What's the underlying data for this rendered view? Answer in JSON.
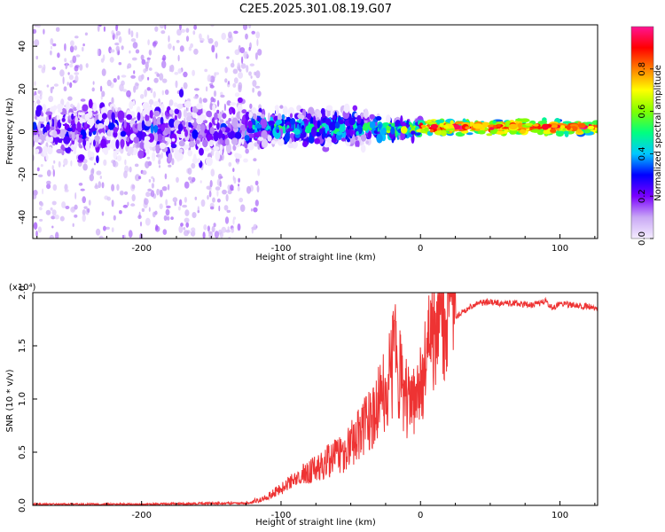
{
  "title": "C2E5.2025.301.08.19.G07",
  "chart_data": [
    {
      "type": "heatmap",
      "name": "spectrogram",
      "xlabel": "Height of straight line (km)",
      "ylabel": "Frequency (Hz)",
      "xlim": [
        -278,
        127
      ],
      "ylim": [
        -50,
        50
      ],
      "xticks": [
        -200,
        -100,
        0,
        100
      ],
      "yticks": [
        -40,
        -20,
        0,
        20,
        40
      ],
      "colorbar": {
        "label": "Normalized spectral amplitude",
        "range": [
          0,
          1
        ],
        "ticks": [
          0.0,
          0.2,
          0.4,
          0.6,
          0.8
        ],
        "tick_labels": [
          "0.0",
          "0.2",
          "0.4",
          "0.6",
          "0.8"
        ],
        "colormap": [
          "#f4ecff",
          "#c9a8f5",
          "#7a00ff",
          "#0000ff",
          "#00c8ff",
          "#00ff7f",
          "#7fff00",
          "#ffff00",
          "#ff8000",
          "#ff0000",
          "#ff1493"
        ]
      },
      "ridge": {
        "description": "dominant frequency band around 0 Hz",
        "segments": [
          {
            "x_from": -278,
            "x_to": -125,
            "center_hz": 1,
            "spread_hz": 6,
            "level": 0.2,
            "scatter": "wide noise from -50 to 50 Hz"
          },
          {
            "x_from": -125,
            "x_to": -30,
            "center_hz": 2,
            "spread_hz": 4,
            "level": 0.4
          },
          {
            "x_from": -30,
            "x_to": 0,
            "center_hz": 1,
            "spread_hz": 2,
            "level": 0.55
          },
          {
            "x_from": 0,
            "x_to": 127,
            "center_hz": 2,
            "spread_hz": 1.5,
            "level": 0.85
          }
        ]
      }
    },
    {
      "type": "line",
      "name": "snr",
      "xlabel": "Height of straight line (km)",
      "ylabel": "SNR (10 * v/v)",
      "y_multiplier": "(x10⁴)",
      "xlim": [
        -278,
        127
      ],
      "ylim": [
        0,
        2
      ],
      "xticks": [
        -200,
        -100,
        0,
        100
      ],
      "yticks": [
        0.0,
        0.5,
        1.0,
        1.5,
        2.0
      ],
      "ytick_labels": [
        "0.0",
        "0.5",
        "1.0",
        "1.5",
        "2.0"
      ],
      "color": "#ee3333",
      "series": [
        {
          "name": "SNR",
          "x": [
            -278,
            -250,
            -200,
            -150,
            -125,
            -115,
            -105,
            -95,
            -85,
            -75,
            -65,
            -55,
            -45,
            -35,
            -28,
            -22,
            -18,
            -12,
            -6,
            0,
            5,
            10,
            15,
            20,
            30,
            40,
            50,
            60,
            70,
            80,
            90,
            95,
            100,
            110,
            120,
            127
          ],
          "y": [
            0.01,
            0.01,
            0.01,
            0.02,
            0.02,
            0.04,
            0.1,
            0.17,
            0.24,
            0.3,
            0.36,
            0.42,
            0.55,
            0.7,
            0.85,
            1.05,
            1.2,
            0.9,
            0.75,
            1.0,
            1.2,
            1.4,
            1.55,
            1.7,
            1.82,
            1.9,
            1.91,
            1.9,
            1.9,
            1.88,
            1.92,
            1.85,
            1.9,
            1.88,
            1.87,
            1.85
          ]
        }
      ]
    }
  ]
}
